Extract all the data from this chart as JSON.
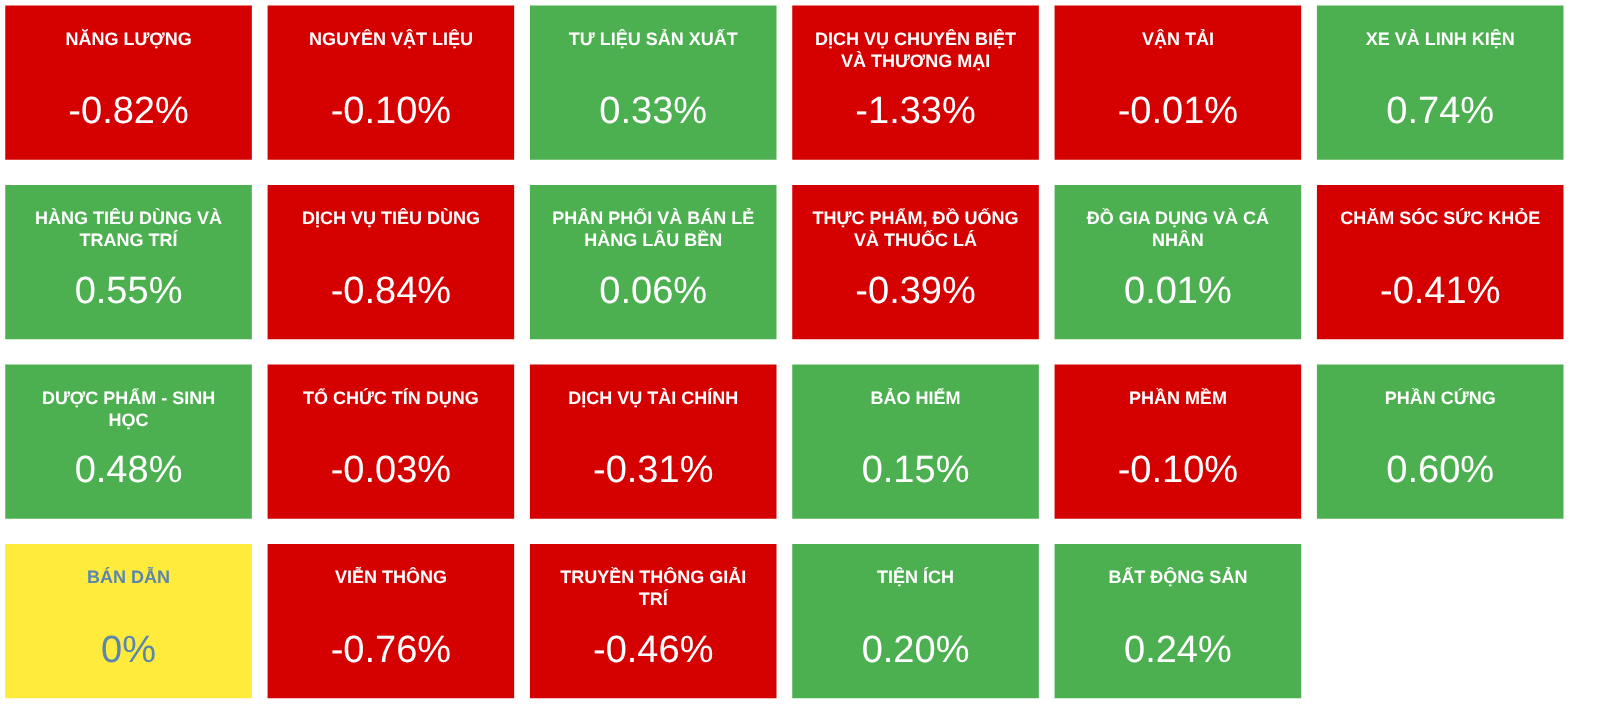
{
  "chart_data": {
    "type": "other",
    "categories": [
      "NĂNG LƯỢNG",
      "NGUYÊN VẬT LIỆU",
      "TƯ LIỆU SẢN XUẤT",
      "DỊCH VỤ CHUYÊN BIỆT VÀ THƯƠNG MẠI",
      "VẬN TẢI",
      "XE VÀ LINH KIỆN",
      "HÀNG TIÊU DÙNG VÀ TRANG TRÍ",
      "DỊCH VỤ TIÊU DÙNG",
      "PHÂN PHỐI VÀ BÁN LẺ HÀNG LÂU BỀN",
      "THỰC PHẨM, ĐỒ UỐNG VÀ THUỐC LÁ",
      "ĐỒ GIA DỤNG VÀ CÁ NHÂN",
      "CHĂM SÓC SỨC KHỎE",
      "DƯỢC PHẨM - SINH HỌC",
      "TỔ CHỨC TÍN DỤNG",
      "DỊCH VỤ TÀI CHÍNH",
      "BẢO HIỂM",
      "PHẦN MỀM",
      "PHẦN CỨNG",
      "BÁN DẪN",
      "VIỄN THÔNG",
      "TRUYỀN THÔNG GIẢI TRÍ",
      "TIỆN ÍCH",
      "BẤT ĐỘNG SẢN"
    ],
    "values": [
      -0.82,
      -0.1,
      0.33,
      -1.33,
      -0.01,
      0.74,
      0.55,
      -0.84,
      0.06,
      -0.39,
      0.01,
      -0.41,
      0.48,
      -0.03,
      -0.31,
      0.15,
      -0.1,
      0.6,
      0,
      -0.76,
      -0.46,
      0.2,
      0.24
    ],
    "value_labels": [
      "-0.82%",
      "-0.10%",
      "0.33%",
      "-1.33%",
      "-0.01%",
      "0.74%",
      "0.55%",
      "-0.84%",
      "0.06%",
      "-0.39%",
      "0.01%",
      "-0.41%",
      "0.48%",
      "-0.03%",
      "-0.31%",
      "0.15%",
      "-0.10%",
      "0.60%",
      "0%",
      "-0.76%",
      "-0.46%",
      "0.20%",
      "0.24%"
    ],
    "colors": [
      "#d50000",
      "#d50000",
      "#4caf50",
      "#d50000",
      "#d50000",
      "#4caf50",
      "#4caf50",
      "#d50000",
      "#4caf50",
      "#d50000",
      "#4caf50",
      "#d50000",
      "#4caf50",
      "#d50000",
      "#d50000",
      "#4caf50",
      "#d50000",
      "#4caf50",
      "#ffeb3b",
      "#d50000",
      "#d50000",
      "#4caf50",
      "#4caf50"
    ]
  }
}
